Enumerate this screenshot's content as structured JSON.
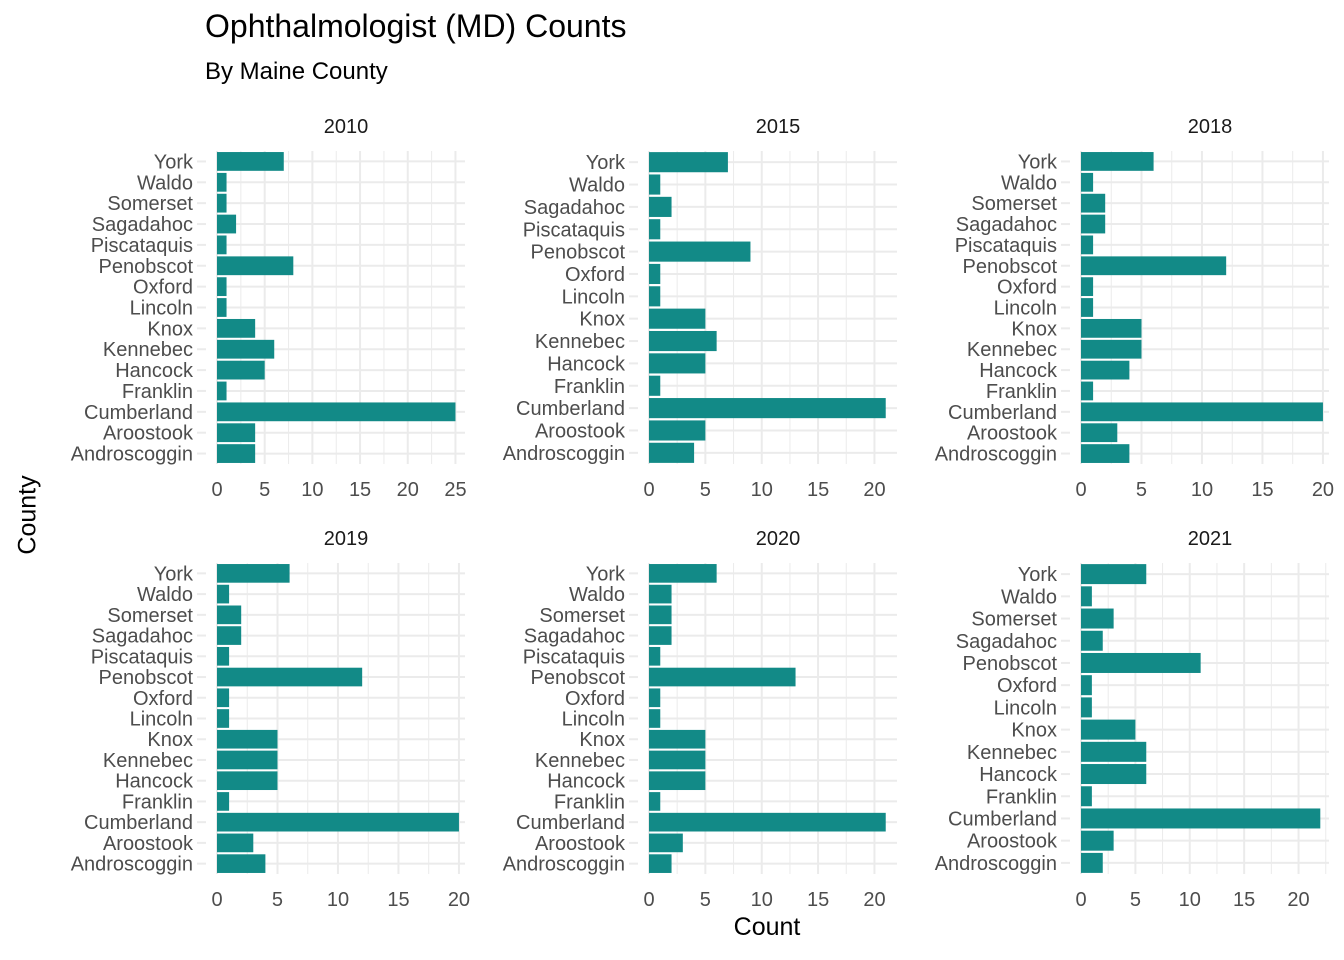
{
  "title": "Ophthalmologist (MD) Counts",
  "subtitle": "By Maine County",
  "xlabel": "Count",
  "ylabel": "County",
  "colors": {
    "bar": "#128A87",
    "grid": "#EBEBEB",
    "text": "#4D4D4D",
    "strip": "#1A1A1A"
  },
  "chart_data": {
    "type": "bar",
    "orientation": "horizontal",
    "facet": "year",
    "grid": true,
    "panels": [
      {
        "label": "2010",
        "categories": [
          "Androscoggin",
          "Aroostook",
          "Cumberland",
          "Franklin",
          "Hancock",
          "Kennebec",
          "Knox",
          "Lincoln",
          "Oxford",
          "Penobscot",
          "Piscataquis",
          "Sagadahoc",
          "Somerset",
          "Waldo",
          "York"
        ],
        "values": [
          4,
          4,
          25,
          1,
          5,
          6,
          4,
          1,
          1,
          8,
          1,
          2,
          1,
          1,
          7
        ],
        "xlim": [
          0,
          26
        ],
        "xticks": [
          0,
          5,
          10,
          15,
          20,
          25
        ]
      },
      {
        "label": "2015",
        "categories": [
          "Androscoggin",
          "Aroostook",
          "Cumberland",
          "Franklin",
          "Hancock",
          "Kennebec",
          "Knox",
          "Lincoln",
          "Oxford",
          "Penobscot",
          "Piscataquis",
          "Sagadahoc",
          "Waldo",
          "York"
        ],
        "values": [
          4,
          5,
          21,
          1,
          5,
          6,
          5,
          1,
          1,
          9,
          1,
          2,
          1,
          7
        ],
        "xlim": [
          0,
          22
        ],
        "xticks": [
          0,
          5,
          10,
          15,
          20
        ]
      },
      {
        "label": "2018",
        "categories": [
          "Androscoggin",
          "Aroostook",
          "Cumberland",
          "Franklin",
          "Hancock",
          "Kennebec",
          "Knox",
          "Lincoln",
          "Oxford",
          "Penobscot",
          "Piscataquis",
          "Sagadahoc",
          "Somerset",
          "Waldo",
          "York"
        ],
        "values": [
          4,
          3,
          20,
          1,
          4,
          5,
          5,
          1,
          1,
          12,
          1,
          2,
          2,
          1,
          6
        ],
        "xlim": [
          0,
          20.5
        ],
        "xticks": [
          0,
          5,
          10,
          15,
          20
        ]
      },
      {
        "label": "2019",
        "categories": [
          "Androscoggin",
          "Aroostook",
          "Cumberland",
          "Franklin",
          "Hancock",
          "Kennebec",
          "Knox",
          "Lincoln",
          "Oxford",
          "Penobscot",
          "Piscataquis",
          "Sagadahoc",
          "Somerset",
          "Waldo",
          "York"
        ],
        "values": [
          4,
          3,
          20,
          1,
          5,
          5,
          5,
          1,
          1,
          12,
          1,
          2,
          2,
          1,
          6
        ],
        "xlim": [
          0,
          20.5
        ],
        "xticks": [
          0,
          5,
          10,
          15,
          20
        ]
      },
      {
        "label": "2020",
        "categories": [
          "Androscoggin",
          "Aroostook",
          "Cumberland",
          "Franklin",
          "Hancock",
          "Kennebec",
          "Knox",
          "Lincoln",
          "Oxford",
          "Penobscot",
          "Piscataquis",
          "Sagadahoc",
          "Somerset",
          "Waldo",
          "York"
        ],
        "values": [
          2,
          3,
          21,
          1,
          5,
          5,
          5,
          1,
          1,
          13,
          1,
          2,
          2,
          2,
          6
        ],
        "xlim": [
          0,
          22
        ],
        "xticks": [
          0,
          5,
          10,
          15,
          20
        ]
      },
      {
        "label": "2021",
        "categories": [
          "Androscoggin",
          "Aroostook",
          "Cumberland",
          "Franklin",
          "Hancock",
          "Kennebec",
          "Knox",
          "Lincoln",
          "Oxford",
          "Penobscot",
          "Sagadahoc",
          "Somerset",
          "Waldo",
          "York"
        ],
        "values": [
          2,
          3,
          22,
          1,
          6,
          6,
          5,
          1,
          1,
          11,
          2,
          3,
          1,
          6
        ],
        "xlim": [
          0,
          22.8
        ],
        "xticks": [
          0,
          5,
          10,
          15,
          20
        ]
      }
    ]
  }
}
